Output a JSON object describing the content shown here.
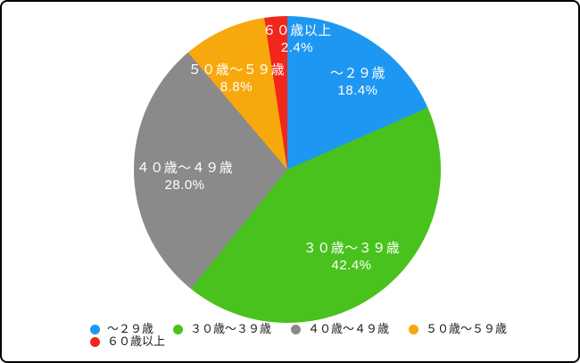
{
  "chart_data": {
    "type": "pie",
    "categories": [
      "～２９歳",
      "３０歳～３９歳",
      "４０歳～４９歳",
      "５０歳～５９歳",
      "６０歳以上"
    ],
    "values": [
      18.4,
      42.4,
      28.0,
      8.8,
      2.4
    ],
    "percent_labels": [
      "18.4%",
      "42.4%",
      "28.0%",
      "8.8%",
      "2.4%"
    ],
    "colors": [
      "#1E97F2",
      "#49C21E",
      "#8A8A8A",
      "#F7A80D",
      "#F2261A"
    ],
    "start_angle_deg": 0,
    "direction": "clockwise",
    "slice_label_color": "#FFFFFF",
    "legend_position": "bottom-left",
    "background_color": "#FFFFFF",
    "border_color": "#000000"
  }
}
